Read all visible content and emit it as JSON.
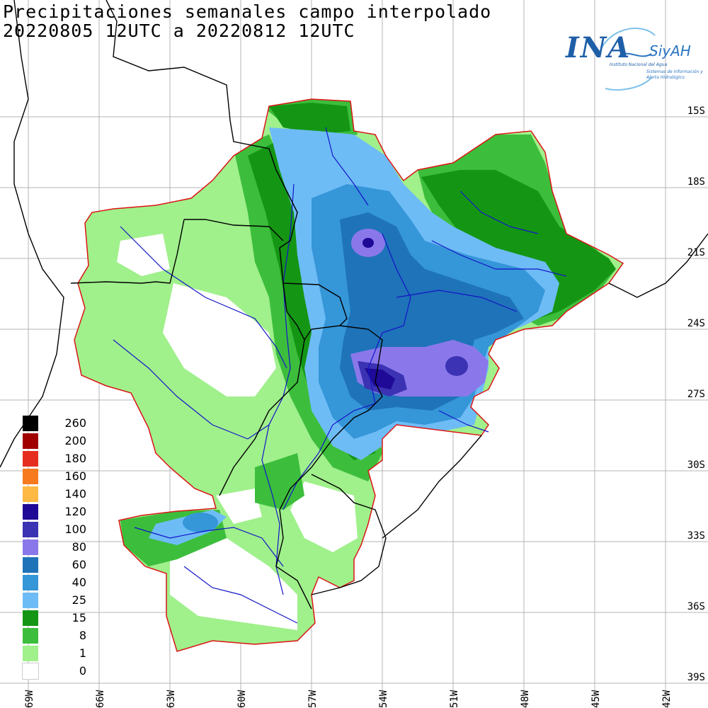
{
  "title": {
    "line1": "Precipitaciones semanales campo interpolado",
    "line2": "20220805 12UTC a 20220812 12UTC"
  },
  "logo": {
    "ina": "INA",
    "siyah": "SiyAH",
    "sub1": "Instituto Nacional del Agua",
    "sub2": "Sistemas de Información y Alerta Hidrológico"
  },
  "lat_labels": [
    "15S",
    "18S",
    "21S",
    "24S",
    "27S",
    "30S",
    "33S",
    "36S",
    "39S"
  ],
  "lon_labels": [
    "69W",
    "66W",
    "63W",
    "60W",
    "57W",
    "54W",
    "51W",
    "48W",
    "45W",
    "42W"
  ],
  "legend": [
    {
      "value": "260",
      "color": "#000000"
    },
    {
      "value": "200",
      "color": "#a00000"
    },
    {
      "value": "180",
      "color": "#e52e1f"
    },
    {
      "value": "160",
      "color": "#f77a1e"
    },
    {
      "value": "140",
      "color": "#fdb944"
    },
    {
      "value": "120",
      "color": "#1e0a96"
    },
    {
      "value": "100",
      "color": "#3b32b4"
    },
    {
      "value": "80",
      "color": "#8a78eb"
    },
    {
      "value": "60",
      "color": "#1f73b8"
    },
    {
      "value": "40",
      "color": "#3596d8"
    },
    {
      "value": "25",
      "color": "#6ebcf6"
    },
    {
      "value": "15",
      "color": "#149614"
    },
    {
      "value": "8",
      "color": "#3cbe3c"
    },
    {
      "value": "1",
      "color": "#a0f08c"
    },
    {
      "value": "0",
      "color": "#ffffff"
    }
  ],
  "colors": {
    "basin_outline": "#dc1414",
    "rivers": "#1414c8",
    "borders": "#000000",
    "grid": "#b4b4b4"
  }
}
